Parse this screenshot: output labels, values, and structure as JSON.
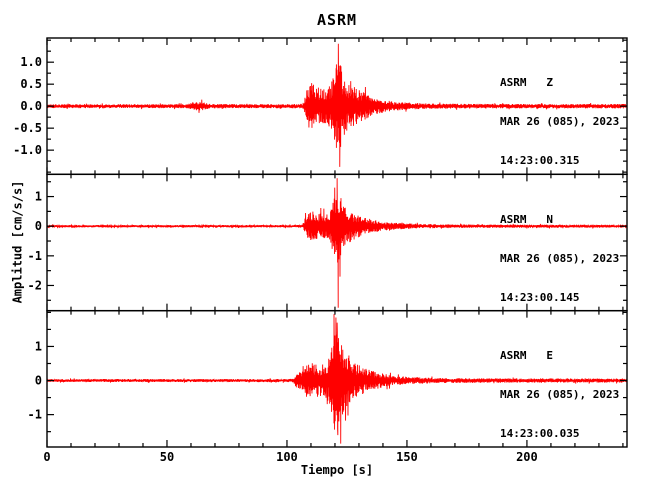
{
  "title": "ASRM",
  "colors": {
    "trace": "#ff0000",
    "frame": "#000000",
    "background": "#ffffff",
    "text": "#000000"
  },
  "chart_data": {
    "type": "line",
    "subtype": "seismogram-3-component",
    "title": "ASRM",
    "xlabel": "Tiempo [s]",
    "ylabel": "Amplitud [cm/s/s]",
    "xlim": [
      0,
      241.7
    ],
    "x_major_ticks": [
      {
        "value": 0,
        "label": "0"
      },
      {
        "value": 50,
        "label": "50"
      },
      {
        "value": 100,
        "label": "100"
      },
      {
        "value": 150,
        "label": "150"
      },
      {
        "value": 200,
        "label": "200"
      }
    ],
    "x_minor_step": 10,
    "legend_position": "none",
    "grid": false,
    "panels": [
      {
        "station": "ASRM   Z",
        "date": "MAR 26 (085), 2023",
        "time": "14:23:00.315",
        "ylim": [
          -1.55,
          1.55
        ],
        "y_major_ticks": [
          {
            "value": 1.0,
            "label": "1.0"
          },
          {
            "value": 0.5,
            "label": "0.5"
          },
          {
            "value": 0.0,
            "label": "0.0"
          },
          {
            "value": -0.5,
            "label": "-0.5"
          },
          {
            "value": -1.0,
            "label": "-1.0"
          }
        ],
        "y_minor_step": 0.25,
        "seed": 11,
        "envelope": [
          [
            0,
            0.045
          ],
          [
            58,
            0.045
          ],
          [
            61,
            0.09
          ],
          [
            64,
            0.11
          ],
          [
            66,
            0.08
          ],
          [
            68,
            0.05
          ],
          [
            80,
            0.045
          ],
          [
            104,
            0.048
          ],
          [
            107,
            0.055
          ],
          [
            107.8,
            0.3
          ],
          [
            109,
            0.5
          ],
          [
            110.5,
            0.55
          ],
          [
            112,
            0.45
          ],
          [
            114,
            0.4
          ],
          [
            116,
            0.42
          ],
          [
            118,
            0.5
          ],
          [
            119.5,
            0.75
          ],
          [
            120.8,
            1.05
          ],
          [
            121.5,
            1.15
          ],
          [
            122.3,
            1.0
          ],
          [
            123.5,
            0.7
          ],
          [
            125,
            0.55
          ],
          [
            127,
            0.5
          ],
          [
            129,
            0.42
          ],
          [
            131,
            0.35
          ],
          [
            134,
            0.26
          ],
          [
            137,
            0.2
          ],
          [
            140,
            0.15
          ],
          [
            144,
            0.11
          ],
          [
            148,
            0.09
          ],
          [
            153,
            0.075
          ],
          [
            160,
            0.06
          ],
          [
            170,
            0.055
          ],
          [
            200,
            0.05
          ],
          [
            241.7,
            0.05
          ]
        ],
        "spikes": [
          [
            120.6,
            0.95
          ],
          [
            121.4,
            1.42
          ],
          [
            122.0,
            -1.38
          ]
        ]
      },
      {
        "station": "ASRM   N",
        "date": "MAR 26 (085), 2023",
        "time": "14:23:00.145",
        "ylim": [
          -2.85,
          1.75
        ],
        "y_major_ticks": [
          {
            "value": 1,
            "label": "1"
          },
          {
            "value": 0,
            "label": "0"
          },
          {
            "value": -1,
            "label": "-1"
          },
          {
            "value": -2,
            "label": "-2"
          }
        ],
        "y_minor_step": 0.5,
        "seed": 22,
        "envelope": [
          [
            0,
            0.038
          ],
          [
            100,
            0.04
          ],
          [
            104,
            0.045
          ],
          [
            106.5,
            0.05
          ],
          [
            107.5,
            0.28
          ],
          [
            109,
            0.45
          ],
          [
            111,
            0.5
          ],
          [
            113,
            0.45
          ],
          [
            115,
            0.4
          ],
          [
            117,
            0.45
          ],
          [
            118.5,
            0.7
          ],
          [
            119.5,
            1.05
          ],
          [
            120.5,
            1.35
          ],
          [
            121.5,
            1.25
          ],
          [
            122.5,
            0.95
          ],
          [
            124,
            0.7
          ],
          [
            126,
            0.55
          ],
          [
            128,
            0.45
          ],
          [
            130,
            0.38
          ],
          [
            133,
            0.28
          ],
          [
            136,
            0.22
          ],
          [
            139,
            0.17
          ],
          [
            143,
            0.13
          ],
          [
            148,
            0.1
          ],
          [
            154,
            0.08
          ],
          [
            162,
            0.065
          ],
          [
            180,
            0.055
          ],
          [
            241.7,
            0.05
          ]
        ],
        "spikes": [
          [
            119.9,
            1.3
          ],
          [
            120.9,
            1.62
          ],
          [
            121.35,
            -2.75
          ],
          [
            122.1,
            -1.7
          ]
        ]
      },
      {
        "station": "ASRM   E",
        "date": "MAR 26 (085), 2023",
        "time": "14:23:00.035",
        "ylim": [
          -1.95,
          2.05
        ],
        "y_major_ticks": [
          {
            "value": 1,
            "label": "1"
          },
          {
            "value": 0,
            "label": "0"
          },
          {
            "value": -1,
            "label": "-1"
          }
        ],
        "y_minor_step": 0.5,
        "seed": 33,
        "envelope": [
          [
            0,
            0.042
          ],
          [
            100,
            0.045
          ],
          [
            102.5,
            0.05
          ],
          [
            104,
            0.22
          ],
          [
            105.5,
            0.26
          ],
          [
            107,
            0.3
          ],
          [
            108,
            0.5
          ],
          [
            110,
            0.55
          ],
          [
            112,
            0.5
          ],
          [
            114,
            0.46
          ],
          [
            116,
            0.5
          ],
          [
            117.5,
            0.65
          ],
          [
            118.8,
            1.0
          ],
          [
            119.8,
            1.45
          ],
          [
            120.8,
            1.55
          ],
          [
            121.8,
            1.35
          ],
          [
            123,
            1.05
          ],
          [
            124.5,
            0.8
          ],
          [
            126,
            0.65
          ],
          [
            128,
            0.55
          ],
          [
            130,
            0.45
          ],
          [
            132,
            0.38
          ],
          [
            135,
            0.3
          ],
          [
            138,
            0.24
          ],
          [
            141,
            0.19
          ],
          [
            145,
            0.14
          ],
          [
            150,
            0.11
          ],
          [
            156,
            0.09
          ],
          [
            164,
            0.075
          ],
          [
            180,
            0.065
          ],
          [
            241.7,
            0.06
          ]
        ],
        "spikes": [
          [
            119.6,
            1.95
          ],
          [
            120.4,
            1.85
          ],
          [
            120.9,
            1.7
          ],
          [
            121.2,
            -1.6
          ],
          [
            122.4,
            -1.85
          ]
        ]
      }
    ]
  }
}
